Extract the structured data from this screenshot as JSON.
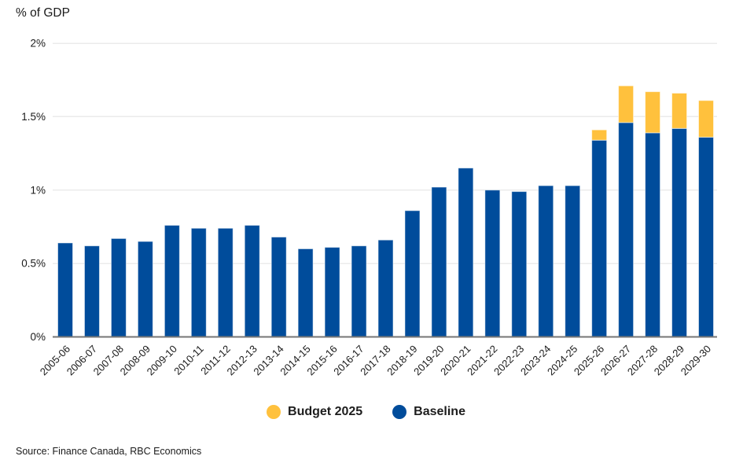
{
  "header": {
    "title": "% of GDP"
  },
  "source": {
    "text": "Source: Finance Canada, RBC Economics"
  },
  "colors": {
    "baseline": "#004C9B",
    "budget": "#FFC13D",
    "grid": "#EBEBEB",
    "axis": "#767676",
    "text": "#1A1A1A"
  },
  "chart_data": {
    "type": "bar",
    "stacked": true,
    "title": "% of GDP",
    "xlabel": "",
    "ylabel": "% of GDP",
    "ylim": [
      0,
      2
    ],
    "grid": true,
    "legend_position": "bottom",
    "yticks": [
      {
        "value": 0,
        "label": "0%"
      },
      {
        "value": 0.5,
        "label": "0.5%"
      },
      {
        "value": 1,
        "label": "1%"
      },
      {
        "value": 1.5,
        "label": "1.5%"
      },
      {
        "value": 2,
        "label": "2%"
      }
    ],
    "categories": [
      "2005-06",
      "2006-07",
      "2007-08",
      "2008-09",
      "2009-10",
      "2010-11",
      "2011-12",
      "2012-13",
      "2013-14",
      "2014-15",
      "2015-16",
      "2016-17",
      "2017-18",
      "2018-19",
      "2019-20",
      "2020-21",
      "2021-22",
      "2022-23",
      "2023-24",
      "2024-25",
      "2025-26",
      "2026-27",
      "2027-28",
      "2028-29",
      "2029-30"
    ],
    "series": [
      {
        "name": "Baseline",
        "color": "#004C9B",
        "values": [
          0.64,
          0.62,
          0.67,
          0.65,
          0.76,
          0.74,
          0.74,
          0.76,
          0.68,
          0.6,
          0.61,
          0.62,
          0.66,
          0.86,
          1.02,
          1.15,
          1.0,
          0.99,
          1.03,
          1.03,
          1.34,
          1.46,
          1.39,
          1.42,
          1.36
        ]
      },
      {
        "name": "Budget 2025",
        "color": "#FFC13D",
        "values": [
          0,
          0,
          0,
          0,
          0,
          0,
          0,
          0,
          0,
          0,
          0,
          0,
          0,
          0,
          0,
          0,
          0,
          0,
          0,
          0,
          0.07,
          0.25,
          0.28,
          0.24,
          0.25
        ]
      }
    ],
    "legend": [
      {
        "label": "Budget 2025",
        "color": "#FFC13D"
      },
      {
        "label": "Baseline",
        "color": "#004C9B"
      }
    ]
  }
}
